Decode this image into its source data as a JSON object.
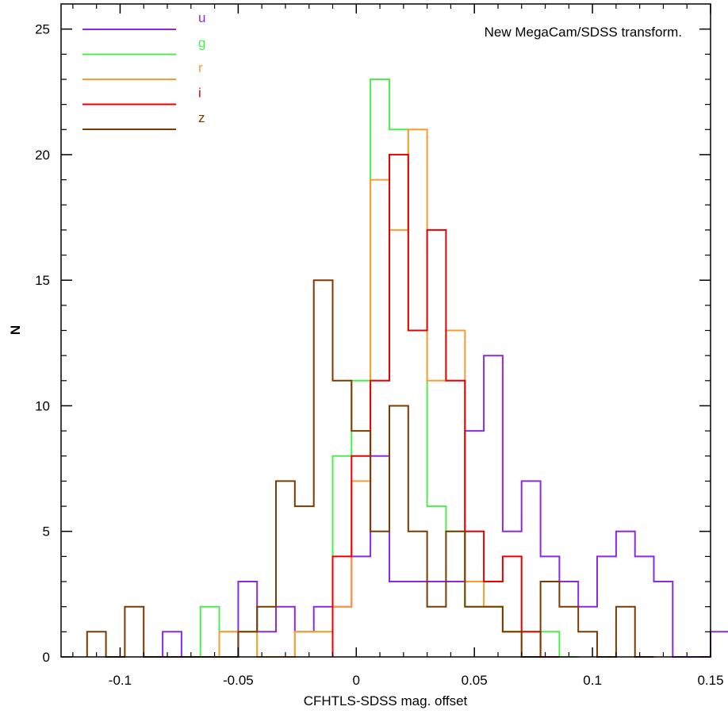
{
  "chart_data": {
    "type": "histogram",
    "annotation": "New MegaCam/SDSS transform.",
    "xlabel": "CFHTLS-SDSS mag. offset",
    "ylabel": "N",
    "xlim": [
      -0.125,
      0.15
    ],
    "ylim": [
      0,
      26
    ],
    "xticks": [
      -0.1,
      -0.05,
      0,
      0.05,
      0.1,
      0.15
    ],
    "xtick_labels": [
      "-0.1",
      "-0.05",
      "0",
      "0.05",
      "0.1",
      "0.15"
    ],
    "yticks": [
      0,
      5,
      10,
      15,
      20,
      25
    ],
    "ytick_labels": [
      "0",
      "5",
      "10",
      "15",
      "20",
      "25"
    ],
    "bin_width": 0.008,
    "legend_position": "top-left",
    "series": [
      {
        "name": "u",
        "color": "#8a2be2",
        "bins": [
          [
            -0.082,
            0
          ],
          [
            -0.082,
            1
          ],
          [
            -0.074,
            0
          ],
          [
            -0.05,
            3
          ],
          [
            -0.042,
            1
          ],
          [
            -0.034,
            2
          ],
          [
            -0.026,
            1
          ],
          [
            -0.018,
            2
          ],
          [
            -0.01,
            2
          ],
          [
            -0.002,
            4
          ],
          [
            0.006,
            8
          ],
          [
            0.014,
            3
          ],
          [
            0.022,
            3
          ],
          [
            0.03,
            3
          ],
          [
            0.038,
            3
          ],
          [
            0.046,
            9
          ],
          [
            0.054,
            12
          ],
          [
            0.062,
            5
          ],
          [
            0.07,
            7
          ],
          [
            0.078,
            4
          ],
          [
            0.086,
            3
          ],
          [
            0.094,
            2
          ],
          [
            0.102,
            4
          ],
          [
            0.11,
            5
          ],
          [
            0.118,
            4
          ],
          [
            0.126,
            3
          ],
          [
            0.134,
            0
          ],
          [
            0.15,
            1
          ]
        ]
      },
      {
        "name": "g",
        "color": "#4cee4c",
        "bins": [
          [
            -0.066,
            2
          ],
          [
            -0.058,
            1
          ],
          [
            -0.05,
            1
          ],
          [
            -0.042,
            0
          ],
          [
            -0.026,
            1
          ],
          [
            -0.018,
            1
          ],
          [
            -0.01,
            8
          ],
          [
            -0.002,
            11
          ],
          [
            0.006,
            23
          ],
          [
            0.014,
            21
          ],
          [
            0.022,
            13
          ],
          [
            0.03,
            6
          ],
          [
            0.038,
            5
          ],
          [
            0.046,
            2
          ],
          [
            0.054,
            2
          ],
          [
            0.062,
            1
          ],
          [
            0.07,
            1
          ],
          [
            0.078,
            1
          ],
          [
            0.086,
            0
          ]
        ]
      },
      {
        "name": "r",
        "color": "#ff9a33",
        "bins": [
          [
            -0.058,
            1
          ],
          [
            -0.05,
            1
          ],
          [
            -0.026,
            1
          ],
          [
            -0.018,
            1
          ],
          [
            -0.01,
            2
          ],
          [
            -0.002,
            7
          ],
          [
            0.006,
            19
          ],
          [
            0.014,
            17
          ],
          [
            0.022,
            21
          ],
          [
            0.03,
            11
          ],
          [
            0.038,
            13
          ],
          [
            0.046,
            3
          ],
          [
            0.054,
            2
          ],
          [
            0.062,
            1
          ],
          [
            0.07,
            0
          ]
        ]
      },
      {
        "name": "i",
        "color": "#e80000",
        "bins": [
          [
            -0.01,
            4
          ],
          [
            -0.002,
            8
          ],
          [
            0.006,
            11
          ],
          [
            0.014,
            20
          ],
          [
            0.022,
            13
          ],
          [
            0.03,
            17
          ],
          [
            0.038,
            11
          ],
          [
            0.046,
            5
          ],
          [
            0.054,
            3
          ],
          [
            0.062,
            4
          ],
          [
            0.07,
            1
          ],
          [
            0.078,
            0
          ]
        ]
      },
      {
        "name": "z",
        "color": "#7b3a00",
        "bins": [
          [
            -0.114,
            1
          ],
          [
            -0.106,
            0
          ],
          [
            -0.098,
            2
          ],
          [
            -0.09,
            0
          ],
          [
            -0.05,
            1
          ],
          [
            -0.042,
            2
          ],
          [
            -0.034,
            7
          ],
          [
            -0.026,
            6
          ],
          [
            -0.018,
            15
          ],
          [
            -0.01,
            11
          ],
          [
            -0.002,
            9
          ],
          [
            0.006,
            5
          ],
          [
            0.014,
            10
          ],
          [
            0.022,
            5
          ],
          [
            0.03,
            2
          ],
          [
            0.038,
            5
          ],
          [
            0.046,
            2
          ],
          [
            0.054,
            2
          ],
          [
            0.062,
            1
          ],
          [
            0.07,
            0
          ],
          [
            0.078,
            3
          ],
          [
            0.086,
            2
          ],
          [
            0.094,
            1
          ],
          [
            0.102,
            0
          ],
          [
            0.11,
            2
          ],
          [
            0.118,
            0
          ]
        ]
      }
    ]
  }
}
